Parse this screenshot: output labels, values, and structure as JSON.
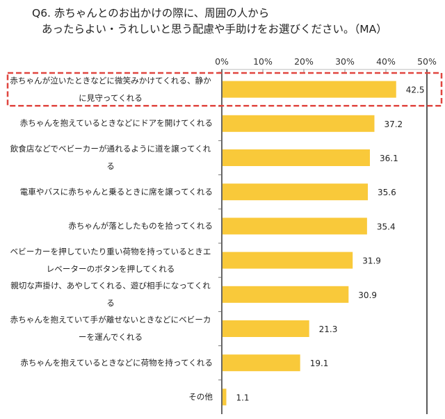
{
  "title": {
    "line1": "Q6. 赤ちゃんとのお出かけの際に、周囲の人から",
    "line2": "あったらよい・うれしいと思う配慮や手助けをお選びください。（MA）"
  },
  "chart_data": {
    "type": "bar",
    "orientation": "horizontal",
    "categories": [
      "赤ちゃんが泣いたときなどに微笑みかけてくれる、静かに見守ってくれる",
      "赤ちゃんを抱えているときなどにドアを開けてくれる",
      "飲食店などでベビーカーが通れるように道を譲ってくれる",
      "電車やバスに赤ちゃんと乗るときに席を譲ってくれる",
      "赤ちゃんが落としたものを拾ってくれる",
      "ベビーカーを押していたり重い荷物を持っているときエレベーターのボタンを押してくれる",
      "親切な声掛け、あやしてくれる、遊び相手になってくれる",
      "赤ちゃんを抱えていて手が離せないときなどにベビーカーを運んでくれる",
      "赤ちゃんを抱えているときなどに荷物を持ってくれる",
      "その他"
    ],
    "values": [
      42.5,
      37.2,
      36.1,
      35.6,
      35.4,
      31.9,
      30.9,
      21.3,
      19.1,
      1.1
    ],
    "data_labels": [
      "42.5",
      "37.2",
      "36.1",
      "35.6",
      "35.4",
      "31.9",
      "30.9",
      "21.3",
      "19.1",
      "1.1"
    ],
    "xlim": [
      0,
      50
    ],
    "xticks": [
      "0%",
      "10%",
      "20%",
      "30%",
      "40%",
      "50%"
    ],
    "grid": false,
    "highlighted_category_index": 0,
    "colors": {
      "bar": "#F9C93A",
      "highlight_box": "#E0453F",
      "axis": "#666666"
    }
  }
}
